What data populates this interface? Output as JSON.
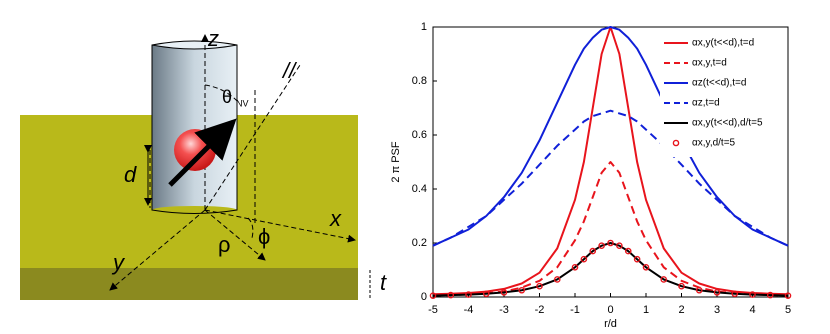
{
  "diagram": {
    "labels": [
      "z",
      "θ",
      "NV",
      "//",
      "d",
      "x",
      "y",
      "ρ",
      "ϕ",
      "t"
    ]
  },
  "chart_data": {
    "type": "line",
    "xlabel": "r/d",
    "ylabel": "2 π PSF",
    "x": [
      -5,
      -4.5,
      -4,
      -3.5,
      -3,
      -2.5,
      -2,
      -1.5,
      -1,
      -0.75,
      -0.5,
      -0.25,
      0,
      0.25,
      0.5,
      0.75,
      1,
      1.5,
      2,
      2.5,
      3,
      3.5,
      4,
      4.5,
      5
    ],
    "xlim": [
      -5,
      5
    ],
    "xticks": [
      -5,
      -4,
      -3,
      -2,
      -1,
      0,
      1,
      2,
      3,
      4,
      5
    ],
    "ylim": [
      0,
      1
    ],
    "yticks": [
      0,
      0.2,
      0.4,
      0.6,
      0.8,
      1
    ],
    "legend": "upper right",
    "series": [
      {
        "name": "αx,y(t<<d),t=d",
        "color": "#e8141c",
        "dash": false,
        "marker": "none",
        "values": [
          0.01,
          0.012,
          0.015,
          0.02,
          0.03,
          0.05,
          0.09,
          0.18,
          0.36,
          0.5,
          0.7,
          0.9,
          1,
          0.9,
          0.7,
          0.5,
          0.36,
          0.18,
          0.09,
          0.05,
          0.03,
          0.02,
          0.015,
          0.012,
          0.01
        ]
      },
      {
        "name": "αx,y,t=d",
        "color": "#e8141c",
        "dash": true,
        "marker": "none",
        "values": [
          0.005,
          0.007,
          0.01,
          0.014,
          0.02,
          0.035,
          0.06,
          0.11,
          0.21,
          0.28,
          0.37,
          0.46,
          0.5,
          0.46,
          0.37,
          0.28,
          0.21,
          0.11,
          0.06,
          0.035,
          0.02,
          0.014,
          0.01,
          0.007,
          0.005
        ]
      },
      {
        "name": "αz(t<<d),t=d",
        "color": "#1020d8",
        "dash": false,
        "marker": "none",
        "values": [
          0.19,
          0.22,
          0.25,
          0.3,
          0.37,
          0.46,
          0.58,
          0.72,
          0.86,
          0.92,
          0.96,
          0.99,
          1,
          0.99,
          0.96,
          0.92,
          0.86,
          0.72,
          0.58,
          0.46,
          0.37,
          0.3,
          0.25,
          0.22,
          0.19
        ]
      },
      {
        "name": "αz,t=d",
        "color": "#1020d8",
        "dash": true,
        "marker": "none",
        "values": [
          0.19,
          0.22,
          0.26,
          0.3,
          0.36,
          0.42,
          0.49,
          0.56,
          0.62,
          0.65,
          0.67,
          0.68,
          0.69,
          0.68,
          0.67,
          0.65,
          0.62,
          0.56,
          0.49,
          0.42,
          0.36,
          0.3,
          0.26,
          0.22,
          0.19
        ]
      },
      {
        "name": "αx,y(t<<d),d/t=5",
        "color": "#000000",
        "dash": false,
        "marker": "none",
        "values": [
          0.005,
          0.007,
          0.009,
          0.012,
          0.017,
          0.025,
          0.04,
          0.065,
          0.11,
          0.14,
          0.17,
          0.19,
          0.2,
          0.19,
          0.17,
          0.14,
          0.11,
          0.065,
          0.04,
          0.025,
          0.017,
          0.012,
          0.009,
          0.007,
          0.005
        ]
      },
      {
        "name": "αx,y,d/t=5",
        "color": "#e8141c",
        "dash": false,
        "marker": "circle",
        "values": [
          0.005,
          0.007,
          0.009,
          0.012,
          0.017,
          0.025,
          0.04,
          0.065,
          0.11,
          0.14,
          0.17,
          0.19,
          0.2,
          0.19,
          0.17,
          0.14,
          0.11,
          0.065,
          0.04,
          0.025,
          0.017,
          0.012,
          0.009,
          0.007,
          0.005
        ]
      }
    ]
  }
}
